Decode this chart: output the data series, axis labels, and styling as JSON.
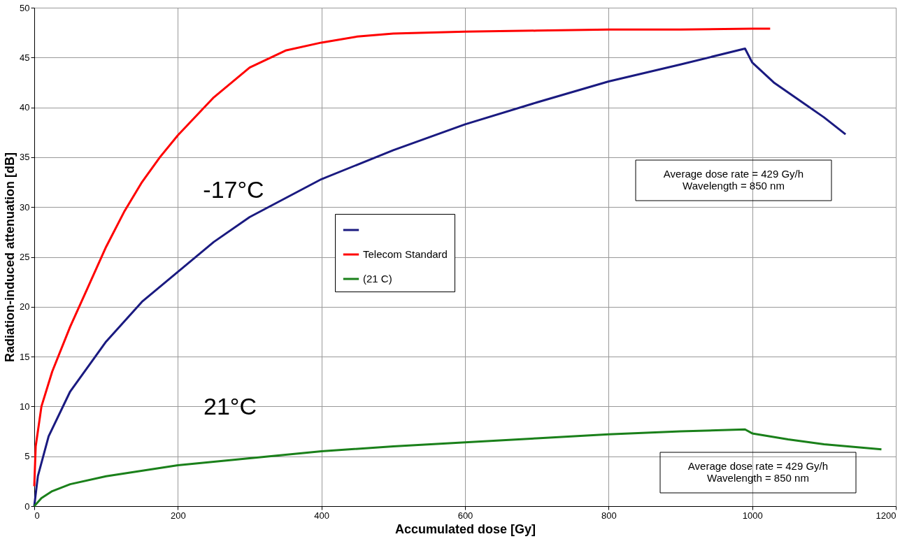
{
  "chart_data": {
    "type": "line",
    "xlabel": "Accumulated dose [Gy]",
    "ylabel": "Radiation-induced attenuation [dB]",
    "xlim": [
      0,
      1200
    ],
    "xticks": [
      0,
      200,
      400,
      600,
      800,
      1000,
      1200
    ],
    "ylim": [
      0,
      50
    ],
    "yticks": [
      0,
      5,
      10,
      15,
      20,
      25,
      30,
      35,
      40,
      45,
      50
    ],
    "grid": true,
    "legend": "center",
    "marker": "none",
    "line_style": "solid",
    "series": [
      {
        "color": "#1a1a80",
        "x": [
          0,
          5,
          20,
          50,
          100,
          150,
          200,
          250,
          300,
          400,
          500,
          600,
          700,
          800,
          900,
          990,
          1000,
          1030,
          1070,
          1100,
          1130
        ],
        "values": [
          0,
          3,
          7,
          11.5,
          16.5,
          20.5,
          23.5,
          26.5,
          29,
          32.8,
          35.7,
          38.3,
          40.5,
          42.6,
          44.3,
          45.9,
          44.5,
          42.5,
          40.5,
          39,
          37.3
        ]
      },
      {
        "name": "Telecom Standard",
        "color": "#ff0000",
        "x": [
          0,
          2,
          10,
          25,
          50,
          75,
          100,
          125,
          150,
          175,
          200,
          250,
          300,
          350,
          400,
          450,
          500,
          600,
          700,
          800,
          900,
          1000,
          1025
        ],
        "values": [
          2,
          6,
          10,
          13.5,
          18,
          22,
          26,
          29.5,
          32.5,
          35,
          37.2,
          41,
          44,
          45.7,
          46.5,
          47.1,
          47.4,
          47.6,
          47.7,
          47.8,
          47.8,
          47.9,
          47.9
        ]
      },
      {
        "name": "(21 C)",
        "color": "#1a801a",
        "x": [
          0,
          10,
          25,
          50,
          100,
          200,
          300,
          400,
          500,
          600,
          700,
          800,
          900,
          990,
          1000,
          1050,
          1100,
          1180
        ],
        "values": [
          0,
          0.8,
          1.5,
          2.2,
          3,
          4.1,
          4.8,
          5.5,
          6,
          6.4,
          6.8,
          7.2,
          7.5,
          7.7,
          7.3,
          6.7,
          6.2,
          5.7
        ]
      }
    ],
    "annotations": [
      "-17°C",
      "21°C",
      "Average dose rate = 429 Gy/h\nWavelength = 850 nm",
      "Average dose rate = 429 Gy/h\nWavelength = 850 nm"
    ]
  }
}
